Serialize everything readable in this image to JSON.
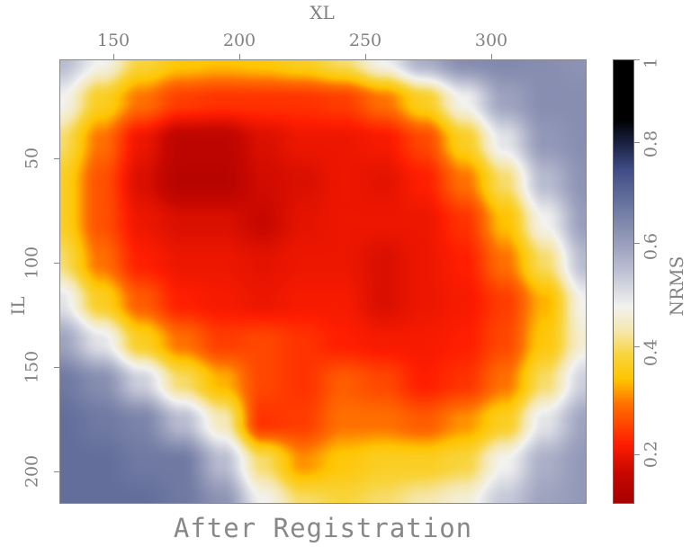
{
  "chart_data": {
    "type": "heatmap",
    "title": "After Registration",
    "xlabel": "XL",
    "ylabel": "IL",
    "colorbar_label": "NRMS",
    "xlim": [
      128.6,
      337.9
    ],
    "ylim": [
      215.5,
      2.6
    ],
    "x_ticks": [
      150,
      200,
      250,
      300
    ],
    "y_ticks": [
      50,
      100,
      150,
      200
    ],
    "colorbar_range": [
      0.1,
      1.0
    ],
    "colorbar_ticks": [
      0.2,
      0.4,
      0.6,
      0.8,
      1
    ],
    "colormap": [
      [
        0.1,
        "#a80000"
      ],
      [
        0.16,
        "#c80800"
      ],
      [
        0.22,
        "#ff1e00"
      ],
      [
        0.3,
        "#ff7000"
      ],
      [
        0.35,
        "#ffc400"
      ],
      [
        0.4,
        "#f8d43c"
      ],
      [
        0.45,
        "#f5e7ae"
      ],
      [
        0.5,
        "#f2f2f0"
      ],
      [
        0.56,
        "#c5c8d8"
      ],
      [
        0.62,
        "#9ea3bf"
      ],
      [
        0.7,
        "#6f79a2"
      ],
      [
        0.78,
        "#3e4c85"
      ],
      [
        0.83,
        "#1c2344"
      ],
      [
        0.88,
        "#000000"
      ],
      [
        1.0,
        "#000000"
      ]
    ],
    "grid_x": [
      128.6,
      144.7,
      160.8,
      176.9,
      193.0,
      209.1,
      225.2,
      241.3,
      257.4,
      273.5,
      289.6,
      305.7,
      321.8,
      337.9
    ],
    "grid_y": [
      2.6,
      22.0,
      41.4,
      60.8,
      80.2,
      99.6,
      119.0,
      138.4,
      157.8,
      177.2,
      196.6,
      215.5
    ],
    "values": [
      [
        0.58,
        0.5,
        0.4,
        0.36,
        0.35,
        0.36,
        0.38,
        0.42,
        0.5,
        0.6,
        0.66,
        0.67,
        0.66,
        0.65
      ],
      [
        0.5,
        0.38,
        0.3,
        0.25,
        0.24,
        0.24,
        0.24,
        0.25,
        0.3,
        0.38,
        0.5,
        0.62,
        0.66,
        0.66
      ],
      [
        0.42,
        0.3,
        0.2,
        0.14,
        0.14,
        0.18,
        0.2,
        0.2,
        0.21,
        0.26,
        0.38,
        0.52,
        0.64,
        0.66
      ],
      [
        0.38,
        0.27,
        0.18,
        0.13,
        0.13,
        0.17,
        0.18,
        0.2,
        0.19,
        0.22,
        0.3,
        0.42,
        0.58,
        0.65
      ],
      [
        0.38,
        0.27,
        0.2,
        0.18,
        0.18,
        0.16,
        0.19,
        0.2,
        0.2,
        0.2,
        0.24,
        0.35,
        0.5,
        0.63
      ],
      [
        0.42,
        0.3,
        0.22,
        0.2,
        0.2,
        0.19,
        0.2,
        0.2,
        0.18,
        0.2,
        0.22,
        0.3,
        0.42,
        0.58
      ],
      [
        0.52,
        0.38,
        0.28,
        0.22,
        0.21,
        0.2,
        0.21,
        0.21,
        0.18,
        0.2,
        0.21,
        0.25,
        0.34,
        0.5
      ],
      [
        0.62,
        0.52,
        0.38,
        0.3,
        0.25,
        0.26,
        0.24,
        0.22,
        0.21,
        0.21,
        0.22,
        0.26,
        0.36,
        0.48
      ],
      [
        0.7,
        0.66,
        0.55,
        0.42,
        0.34,
        0.26,
        0.24,
        0.28,
        0.26,
        0.22,
        0.24,
        0.3,
        0.42,
        0.55
      ],
      [
        0.72,
        0.7,
        0.68,
        0.58,
        0.46,
        0.24,
        0.25,
        0.3,
        0.3,
        0.28,
        0.32,
        0.38,
        0.52,
        0.62
      ],
      [
        0.72,
        0.72,
        0.7,
        0.7,
        0.58,
        0.42,
        0.32,
        0.36,
        0.38,
        0.38,
        0.4,
        0.5,
        0.6,
        0.64
      ],
      [
        0.72,
        0.72,
        0.72,
        0.7,
        0.65,
        0.5,
        0.42,
        0.4,
        0.42,
        0.45,
        0.48,
        0.56,
        0.62,
        0.64
      ]
    ],
    "grid": false,
    "legend_position": "right (colorbar)"
  },
  "labels": {
    "title": "After Registration",
    "xlabel": "XL",
    "ylabel": "IL",
    "colorbar_label": "NRMS",
    "x_ticks": [
      "150",
      "200",
      "250",
      "300"
    ],
    "y_ticks": [
      "50",
      "100",
      "150",
      "200"
    ],
    "colorbar_ticks": [
      "0.2",
      "0.4",
      "0.6",
      "0.8",
      "1"
    ]
  }
}
